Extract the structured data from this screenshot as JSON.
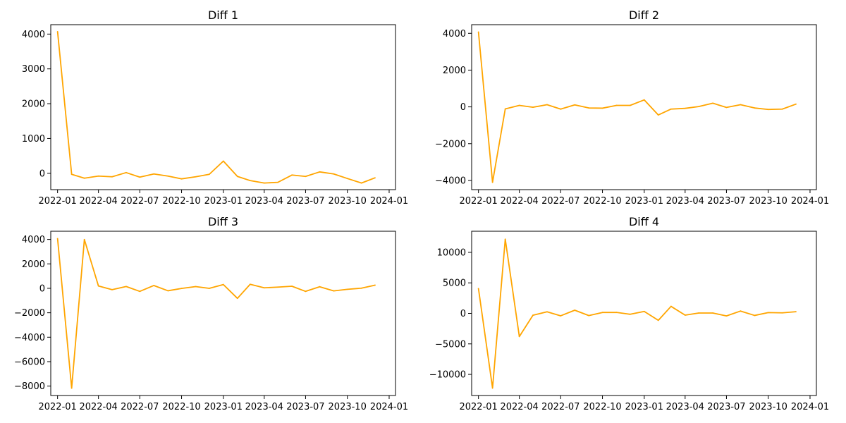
{
  "figure": {
    "line_color": "#FFA500",
    "grid": false,
    "layout": "2x2"
  },
  "chart_data": [
    {
      "type": "line",
      "title": "Diff 1",
      "xlabel": "",
      "ylabel": "",
      "x": [
        "2022-01",
        "2022-02",
        "2022-03",
        "2022-04",
        "2022-05",
        "2022-06",
        "2022-07",
        "2022-08",
        "2022-09",
        "2022-10",
        "2022-11",
        "2022-12",
        "2023-01",
        "2023-02",
        "2023-03",
        "2023-04",
        "2023-05",
        "2023-06",
        "2023-07",
        "2023-08",
        "2023-09",
        "2023-10",
        "2023-11",
        "2023-12"
      ],
      "values": [
        4070,
        -30,
        -140,
        -80,
        -100,
        20,
        -110,
        -20,
        -80,
        -160,
        -100,
        -30,
        350,
        -90,
        -210,
        -280,
        -260,
        -50,
        -90,
        40,
        -20,
        -150,
        -280,
        -130
      ],
      "xlim": [
        "2021-12-17",
        "2024-01-15"
      ],
      "ylim": [
        -470,
        4270
      ],
      "xticks": [
        "2022-01",
        "2022-04",
        "2022-07",
        "2022-10",
        "2023-01",
        "2023-04",
        "2023-07",
        "2023-10",
        "2024-01"
      ],
      "yticks": [
        "0",
        "1000",
        "2000",
        "3000",
        "4000"
      ]
    },
    {
      "type": "line",
      "title": "Diff 2",
      "xlabel": "",
      "ylabel": "",
      "x": [
        "2022-01",
        "2022-02",
        "2022-03",
        "2022-04",
        "2022-05",
        "2022-06",
        "2022-07",
        "2022-08",
        "2022-09",
        "2022-10",
        "2022-11",
        "2022-12",
        "2023-01",
        "2023-02",
        "2023-03",
        "2023-04",
        "2023-05",
        "2023-06",
        "2023-07",
        "2023-08",
        "2023-09",
        "2023-10",
        "2023-11",
        "2023-12"
      ],
      "values": [
        4070,
        -4100,
        -110,
        80,
        -20,
        120,
        -120,
        110,
        -60,
        -70,
        80,
        80,
        380,
        -440,
        -120,
        -80,
        20,
        200,
        -30,
        120,
        -60,
        -140,
        -120,
        150
      ],
      "xlim": [
        "2021-12-17",
        "2024-01-15"
      ],
      "ylim": [
        -4500,
        4470
      ],
      "xticks": [
        "2022-01",
        "2022-04",
        "2022-07",
        "2022-10",
        "2023-01",
        "2023-04",
        "2023-07",
        "2023-10",
        "2024-01"
      ],
      "yticks": [
        "−4000",
        "−2000",
        "0",
        "2000",
        "4000"
      ]
    },
    {
      "type": "line",
      "title": "Diff 3",
      "xlabel": "",
      "ylabel": "",
      "x": [
        "2022-01",
        "2022-02",
        "2022-03",
        "2022-04",
        "2022-05",
        "2022-06",
        "2022-07",
        "2022-08",
        "2022-09",
        "2022-10",
        "2022-11",
        "2022-12",
        "2023-01",
        "2023-02",
        "2023-03",
        "2023-04",
        "2023-05",
        "2023-06",
        "2023-07",
        "2023-08",
        "2023-09",
        "2023-10",
        "2023-11",
        "2023-12"
      ],
      "values": [
        4070,
        -8170,
        3990,
        190,
        -110,
        150,
        -250,
        230,
        -200,
        -10,
        140,
        0,
        310,
        -820,
        330,
        40,
        100,
        170,
        -250,
        130,
        -210,
        -80,
        10,
        260
      ],
      "xlim": [
        "2021-12-17",
        "2024-01-15"
      ],
      "ylim": [
        -8770,
        4670
      ],
      "xticks": [
        "2022-01",
        "2022-04",
        "2022-07",
        "2022-10",
        "2023-01",
        "2023-04",
        "2023-07",
        "2023-10",
        "2024-01"
      ],
      "yticks": [
        "−8000",
        "−6000",
        "−4000",
        "−2000",
        "0",
        "2000",
        "4000"
      ]
    },
    {
      "type": "line",
      "title": "Diff 4",
      "xlabel": "",
      "ylabel": "",
      "x": [
        "2022-01",
        "2022-02",
        "2022-03",
        "2022-04",
        "2022-05",
        "2022-06",
        "2022-07",
        "2022-08",
        "2022-09",
        "2022-10",
        "2022-11",
        "2022-12",
        "2023-01",
        "2023-02",
        "2023-03",
        "2023-04",
        "2023-05",
        "2023-06",
        "2023-07",
        "2023-08",
        "2023-09",
        "2023-10",
        "2023-11",
        "2023-12"
      ],
      "values": [
        4070,
        -12240,
        12160,
        -3800,
        -300,
        260,
        -400,
        520,
        -360,
        150,
        160,
        -150,
        320,
        -1140,
        1150,
        -290,
        60,
        60,
        -420,
        380,
        -340,
        130,
        90,
        270
      ],
      "xlim": [
        "2021-12-17",
        "2024-01-15"
      ],
      "ylim": [
        -13460,
        13460
      ],
      "xticks": [
        "2022-01",
        "2022-04",
        "2022-07",
        "2022-10",
        "2023-01",
        "2023-04",
        "2023-07",
        "2023-10",
        "2024-01"
      ],
      "yticks": [
        "−10000",
        "−5000",
        "0",
        "5000",
        "10000"
      ]
    }
  ]
}
